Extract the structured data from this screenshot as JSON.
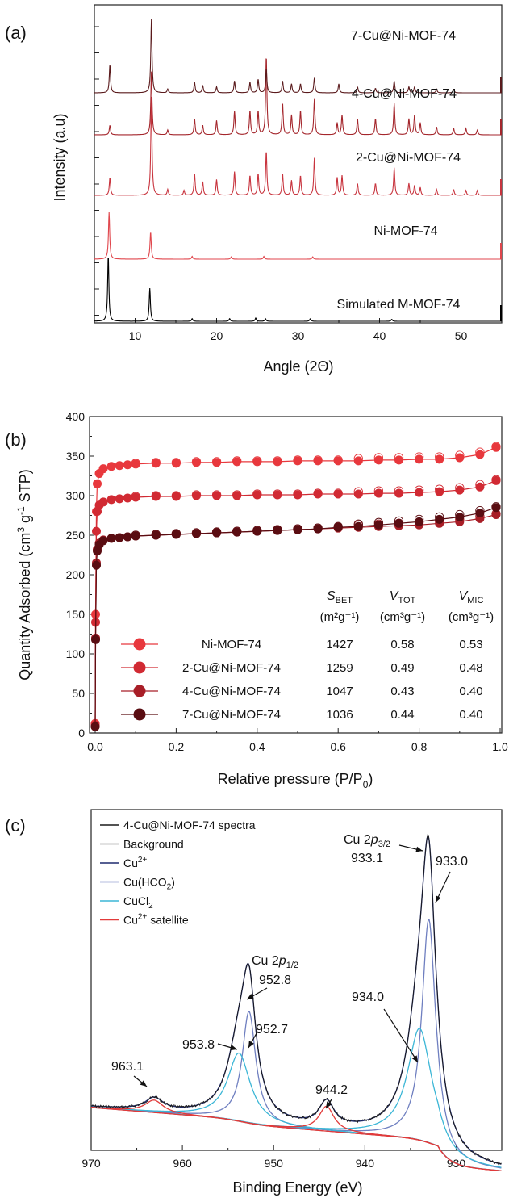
{
  "chart_data": [
    {
      "panel_label": "(a)",
      "type": "line",
      "xlabel": "Angle (2Θ)",
      "ylabel": "Intensity (a.u)",
      "xlim": [
        5,
        55
      ],
      "x_ticks": [
        10,
        20,
        30,
        40,
        50
      ],
      "colors": [
        "#000000",
        "#e0464c",
        "#c8343e",
        "#a4262c",
        "#5a1a1c"
      ],
      "series": [
        {
          "name": "Simulated M-MOF-74",
          "peaks": [
            [
              6.7,
              1.0
            ],
            [
              11.8,
              0.5
            ],
            [
              17.0,
              0.04
            ],
            [
              21.6,
              0.04
            ],
            [
              24.8,
              0.05
            ],
            [
              26.0,
              0.04
            ],
            [
              31.5,
              0.04
            ],
            [
              41.5,
              0.03
            ]
          ]
        },
        {
          "name": "Ni-MOF-74",
          "peaks": [
            [
              6.8,
              1.0
            ],
            [
              11.9,
              0.58
            ],
            [
              17.0,
              0.06
            ],
            [
              21.8,
              0.05
            ],
            [
              25.8,
              0.06
            ],
            [
              31.8,
              0.05
            ]
          ]
        },
        {
          "name": "2-Cu@Ni-MOF-74",
          "peaks": [
            [
              6.9,
              0.18
            ],
            [
              12.0,
              1.0
            ],
            [
              14.0,
              0.06
            ],
            [
              16.0,
              0.05
            ],
            [
              17.3,
              0.22
            ],
            [
              18.3,
              0.14
            ],
            [
              20.0,
              0.16
            ],
            [
              22.2,
              0.24
            ],
            [
              24.1,
              0.2
            ],
            [
              25.1,
              0.22
            ],
            [
              26.1,
              0.45
            ],
            [
              28.1,
              0.22
            ],
            [
              29.2,
              0.15
            ],
            [
              30.3,
              0.2
            ],
            [
              32.0,
              0.38
            ],
            [
              34.8,
              0.18
            ],
            [
              35.4,
              0.2
            ],
            [
              37.3,
              0.12
            ],
            [
              39.5,
              0.12
            ],
            [
              41.8,
              0.28
            ],
            [
              43.6,
              0.12
            ],
            [
              44.3,
              0.1
            ],
            [
              45.0,
              0.08
            ],
            [
              47.0,
              0.06
            ],
            [
              49.1,
              0.06
            ],
            [
              50.6,
              0.05
            ],
            [
              52.0,
              0.05
            ]
          ]
        },
        {
          "name": "4-Cu@Ni-MOF-74",
          "peaks": [
            [
              6.9,
              0.12
            ],
            [
              12.0,
              0.8
            ],
            [
              14.0,
              0.06
            ],
            [
              17.3,
              0.2
            ],
            [
              18.3,
              0.12
            ],
            [
              20.0,
              0.18
            ],
            [
              22.2,
              0.3
            ],
            [
              24.1,
              0.3
            ],
            [
              25.1,
              0.3
            ],
            [
              26.1,
              1.0
            ],
            [
              28.1,
              0.4
            ],
            [
              29.2,
              0.25
            ],
            [
              30.3,
              0.3
            ],
            [
              32.0,
              0.45
            ],
            [
              34.8,
              0.15
            ],
            [
              35.4,
              0.25
            ],
            [
              37.3,
              0.2
            ],
            [
              39.5,
              0.2
            ],
            [
              41.8,
              0.4
            ],
            [
              43.6,
              0.2
            ],
            [
              44.3,
              0.25
            ],
            [
              45.0,
              0.15
            ],
            [
              47.0,
              0.1
            ],
            [
              49.1,
              0.08
            ],
            [
              50.6,
              0.08
            ],
            [
              52.0,
              0.06
            ]
          ]
        },
        {
          "name": "7-Cu@Ni-MOF-74",
          "peaks": [
            [
              6.9,
              0.38
            ],
            [
              12.0,
              1.0
            ],
            [
              14.0,
              0.05
            ],
            [
              17.3,
              0.14
            ],
            [
              18.3,
              0.1
            ],
            [
              20.0,
              0.08
            ],
            [
              22.2,
              0.16
            ],
            [
              24.1,
              0.14
            ],
            [
              25.1,
              0.18
            ],
            [
              26.1,
              0.32
            ],
            [
              28.1,
              0.16
            ],
            [
              29.2,
              0.12
            ],
            [
              30.3,
              0.12
            ],
            [
              32.0,
              0.2
            ],
            [
              35.0,
              0.12
            ],
            [
              37.3,
              0.08
            ],
            [
              39.5,
              0.06
            ],
            [
              41.8,
              0.16
            ],
            [
              43.6,
              0.08
            ],
            [
              44.3,
              0.08
            ],
            [
              47.0,
              0.05
            ],
            [
              49.1,
              0.05
            ]
          ]
        }
      ]
    },
    {
      "panel_label": "(b)",
      "type": "scatter",
      "xlabel": "Relative pressure (P/P0)",
      "ylabel": "Quantity Adsorbed (cm3 g-1 STP)",
      "xlim": [
        0,
        1.0
      ],
      "ylim": [
        0,
        400
      ],
      "x_ticks": [
        0.0,
        0.2,
        0.4,
        0.6,
        0.8,
        1.0
      ],
      "y_ticks": [
        0,
        50,
        100,
        150,
        200,
        250,
        300,
        350,
        400
      ],
      "legend": "bottom-left",
      "table_headers": [
        {
          "main": "S",
          "sub": "BET",
          "units": "(m²g⁻¹)"
        },
        {
          "main": "V",
          "sub": "TOT",
          "units": "(cm³g⁻¹)"
        },
        {
          "main": "V",
          "sub": "MIC",
          "units": "(cm³g⁻¹)"
        }
      ],
      "series": [
        {
          "name": "Ni-MOF-74",
          "color": "#e8383d",
          "SBET": "1427",
          "VTOT": "0.58",
          "VMIC": "0.53",
          "x": [
            0.0,
            0.001,
            0.003,
            0.005,
            0.01,
            0.02,
            0.04,
            0.06,
            0.08,
            0.1,
            0.15,
            0.2,
            0.25,
            0.3,
            0.35,
            0.4,
            0.45,
            0.5,
            0.55,
            0.6,
            0.65,
            0.7,
            0.75,
            0.8,
            0.85,
            0.9,
            0.95,
            0.99
          ],
          "y": [
            12,
            150,
            280,
            315,
            328,
            334,
            337,
            338,
            339,
            340,
            341,
            341,
            342,
            342,
            343,
            343,
            343,
            344,
            344,
            344,
            344,
            345,
            345,
            346,
            346,
            348,
            352,
            361
          ]
        },
        {
          "name": "2-Cu@Ni-MOF-74",
          "color": "#d12a33",
          "SBET": "1259",
          "VTOT": "0.49",
          "VMIC": "0.48",
          "x": [
            0.0,
            0.001,
            0.003,
            0.005,
            0.01,
            0.02,
            0.04,
            0.06,
            0.08,
            0.1,
            0.15,
            0.2,
            0.25,
            0.3,
            0.35,
            0.4,
            0.45,
            0.5,
            0.55,
            0.6,
            0.65,
            0.7,
            0.75,
            0.8,
            0.85,
            0.9,
            0.95,
            0.99
          ],
          "y": [
            10,
            140,
            255,
            280,
            288,
            292,
            295,
            296,
            297,
            298,
            299,
            299,
            300,
            300,
            300,
            301,
            301,
            301,
            302,
            302,
            302,
            303,
            303,
            304,
            305,
            307,
            311,
            319
          ]
        },
        {
          "name": "4-Cu@Ni-MOF-74",
          "color": "#a81e27",
          "SBET": "1047",
          "VTOT": "0.43",
          "VMIC": "0.40",
          "x": [
            0.0,
            0.001,
            0.003,
            0.005,
            0.01,
            0.02,
            0.04,
            0.06,
            0.08,
            0.1,
            0.15,
            0.2,
            0.25,
            0.3,
            0.35,
            0.4,
            0.45,
            0.5,
            0.55,
            0.6,
            0.65,
            0.7,
            0.75,
            0.8,
            0.85,
            0.9,
            0.95,
            0.99
          ],
          "y": [
            8,
            120,
            215,
            232,
            240,
            244,
            246,
            247,
            248,
            249,
            250,
            251,
            252,
            253,
            254,
            255,
            256,
            257,
            258,
            259,
            260,
            261,
            262,
            263,
            265,
            267,
            271,
            276
          ]
        },
        {
          "name": "7-Cu@Ni-MOF-74",
          "color": "#5a0d12",
          "SBET": "1036",
          "VTOT": "0.44",
          "VMIC": "0.40",
          "x": [
            0.0,
            0.001,
            0.003,
            0.005,
            0.01,
            0.02,
            0.04,
            0.06,
            0.08,
            0.1,
            0.15,
            0.2,
            0.25,
            0.3,
            0.35,
            0.4,
            0.45,
            0.5,
            0.55,
            0.6,
            0.65,
            0.7,
            0.75,
            0.8,
            0.85,
            0.9,
            0.95,
            0.99
          ],
          "y": [
            8,
            118,
            212,
            230,
            238,
            243,
            246,
            247,
            248,
            249,
            250,
            251,
            252,
            253,
            254,
            255,
            256,
            257,
            258,
            260,
            261,
            263,
            265,
            267,
            270,
            273,
            278,
            285
          ]
        }
      ]
    },
    {
      "panel_label": "(c)",
      "type": "line",
      "xlabel": "Binding Energy (eV)",
      "xlim": [
        970,
        925
      ],
      "x_ticks": [
        970,
        960,
        950,
        940,
        930
      ],
      "legend": "top-left",
      "series": [
        {
          "name": "4-Cu@Ni-MOF-74 spectra",
          "color": "#1a1a1a"
        },
        {
          "name": "Background",
          "color": "#8c8c8c"
        },
        {
          "name": "Cu²⁺",
          "color": "#1f2a6e"
        },
        {
          "name": "Cu(HCO₂)",
          "color": "#6f7fc0"
        },
        {
          "name": "CuCl₂",
          "color": "#3bb6d6"
        },
        {
          "name": "Cu²⁺ satellite",
          "color": "#e23a3a"
        }
      ],
      "components": [
        {
          "series": "Cu(HCO₂)",
          "center": 933.0,
          "height": 0.72,
          "width": 0.9
        },
        {
          "series": "CuCl₂",
          "center": 934.0,
          "height": 0.36,
          "width": 1.6
        },
        {
          "series": "Cu(HCO₂)",
          "center": 952.7,
          "height": 0.36,
          "width": 0.9
        },
        {
          "series": "CuCl₂",
          "center": 953.8,
          "height": 0.22,
          "width": 1.5
        },
        {
          "series": "Cu²⁺ satellite",
          "center": 944.2,
          "height": 0.08,
          "width": 1.0
        },
        {
          "series": "Cu²⁺ satellite",
          "center": 963.1,
          "height": 0.04,
          "width": 1.2
        }
      ],
      "annotations": [
        {
          "title": "Cu 2p",
          "sub": "3/2",
          "value": "933.1"
        },
        {
          "value": "933.0"
        },
        {
          "value": "934.0"
        },
        {
          "title": "Cu 2p",
          "sub": "1/2",
          "value": "952.8"
        },
        {
          "value": "952.7"
        },
        {
          "value": "953.8"
        },
        {
          "value": "944.2"
        },
        {
          "value": "963.1"
        }
      ]
    }
  ]
}
